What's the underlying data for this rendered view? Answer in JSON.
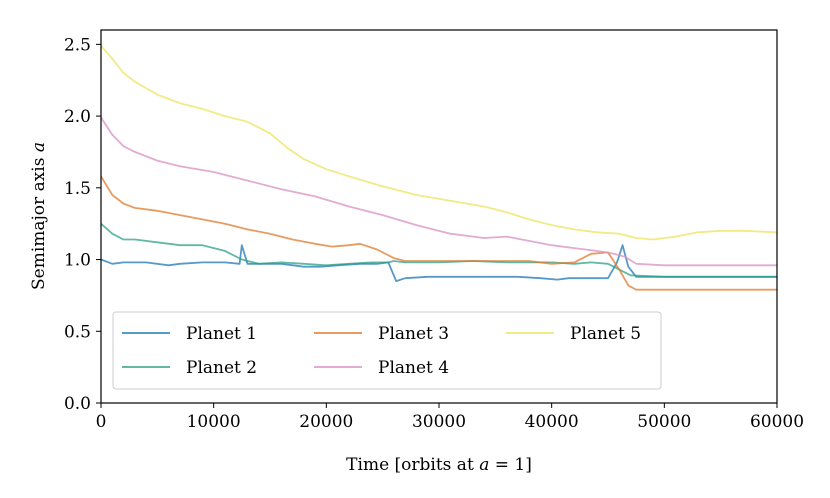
{
  "chart_data": {
    "type": "line",
    "title": "",
    "xlabel": "Time [orbits at a = 1]",
    "xlabel_parts": {
      "prefix": "Time [orbits at ",
      "var": "a",
      "suffix": " = 1]"
    },
    "ylabel": "Semimajor axis a",
    "ylabel_parts": {
      "prefix": "Semimajor axis ",
      "var": "a"
    },
    "xlim": [
      0,
      60000
    ],
    "ylim": [
      0.0,
      2.6
    ],
    "xticks": [
      0,
      10000,
      20000,
      30000,
      40000,
      50000,
      60000
    ],
    "xtick_labels": [
      "0",
      "10000",
      "20000",
      "30000",
      "40000",
      "50000",
      "60000"
    ],
    "yticks": [
      0.0,
      0.5,
      1.0,
      1.5,
      2.0,
      2.5
    ],
    "ytick_labels": [
      "0.0",
      "0.5",
      "1.0",
      "1.5",
      "2.0",
      "2.5"
    ],
    "grid": false,
    "legend": {
      "position": "lower-left",
      "columns": 3
    },
    "series": [
      {
        "name": "Planet 1",
        "color": "#1f77b4",
        "x": [
          0,
          1000,
          2000,
          4000,
          6000,
          7000,
          9000,
          11000,
          12300,
          12500,
          13000,
          14000,
          16000,
          18000,
          19500,
          21000,
          23000,
          24500,
          25500,
          26200,
          27000,
          29000,
          31000,
          33000,
          35000,
          37000,
          39000,
          40500,
          41500,
          43000,
          45000,
          45800,
          46300,
          46800,
          47500,
          50000,
          60000
        ],
        "y": [
          1.0,
          0.97,
          0.98,
          0.98,
          0.96,
          0.97,
          0.98,
          0.98,
          0.97,
          1.1,
          0.97,
          0.97,
          0.97,
          0.95,
          0.95,
          0.96,
          0.97,
          0.97,
          0.98,
          0.85,
          0.87,
          0.88,
          0.88,
          0.88,
          0.88,
          0.88,
          0.87,
          0.86,
          0.87,
          0.87,
          0.87,
          0.98,
          1.1,
          0.95,
          0.88,
          0.88,
          0.88
        ]
      },
      {
        "name": "Planet 2",
        "color": "#2ca087",
        "x": [
          0,
          1000,
          2000,
          3000,
          5000,
          7000,
          9000,
          11000,
          12500,
          14000,
          16000,
          18000,
          20000,
          22000,
          24000,
          25500,
          26000,
          27000,
          30000,
          33000,
          36000,
          38000,
          40000,
          42000,
          43500,
          45000,
          46000,
          47000,
          50000,
          60000
        ],
        "y": [
          1.25,
          1.18,
          1.14,
          1.14,
          1.12,
          1.1,
          1.1,
          1.06,
          1.0,
          0.97,
          0.98,
          0.97,
          0.96,
          0.97,
          0.98,
          0.98,
          0.99,
          0.98,
          0.98,
          0.99,
          0.98,
          0.98,
          0.98,
          0.97,
          0.98,
          0.97,
          0.93,
          0.89,
          0.88,
          0.88
        ]
      },
      {
        "name": "Planet 3",
        "color": "#e07a29",
        "x": [
          0,
          1000,
          2000,
          3000,
          5000,
          7000,
          9000,
          11000,
          13000,
          15000,
          17000,
          19000,
          20500,
          22000,
          23000,
          24500,
          26000,
          27000,
          30000,
          33000,
          36000,
          38000,
          40000,
          42000,
          43500,
          45000,
          46000,
          46800,
          47500,
          50000,
          60000
        ],
        "y": [
          1.58,
          1.45,
          1.39,
          1.36,
          1.34,
          1.31,
          1.28,
          1.25,
          1.21,
          1.18,
          1.14,
          1.11,
          1.09,
          1.1,
          1.11,
          1.07,
          1.01,
          0.99,
          0.99,
          0.99,
          0.99,
          0.99,
          0.97,
          0.98,
          1.04,
          1.05,
          0.93,
          0.82,
          0.79,
          0.79,
          0.79
        ]
      },
      {
        "name": "Planet 4",
        "color": "#d88fc1",
        "x": [
          0,
          1000,
          2000,
          3000,
          5000,
          7000,
          10000,
          13000,
          16000,
          19000,
          22000,
          25000,
          28000,
          31000,
          34000,
          36000,
          38000,
          40000,
          42000,
          44000,
          45500,
          46500,
          47500,
          50000,
          55000,
          60000
        ],
        "y": [
          1.99,
          1.87,
          1.79,
          1.75,
          1.69,
          1.65,
          1.61,
          1.55,
          1.49,
          1.44,
          1.37,
          1.31,
          1.24,
          1.18,
          1.15,
          1.16,
          1.13,
          1.1,
          1.08,
          1.06,
          1.04,
          1.02,
          0.97,
          0.96,
          0.96,
          0.96
        ]
      },
      {
        "name": "Planet 5",
        "color": "#ede35b",
        "x": [
          0,
          1000,
          2000,
          3000,
          5000,
          7000,
          9000,
          11000,
          13000,
          15000,
          16500,
          18000,
          20000,
          22000,
          25000,
          28000,
          31000,
          34000,
          36000,
          38000,
          40000,
          42000,
          44000,
          46000,
          47500,
          49000,
          51000,
          53000,
          55000,
          57000,
          60000
        ],
        "y": [
          2.49,
          2.4,
          2.3,
          2.24,
          2.15,
          2.09,
          2.05,
          2.0,
          1.96,
          1.88,
          1.78,
          1.7,
          1.63,
          1.58,
          1.51,
          1.45,
          1.41,
          1.37,
          1.33,
          1.28,
          1.24,
          1.21,
          1.19,
          1.18,
          1.15,
          1.14,
          1.16,
          1.19,
          1.2,
          1.2,
          1.19
        ]
      }
    ]
  }
}
